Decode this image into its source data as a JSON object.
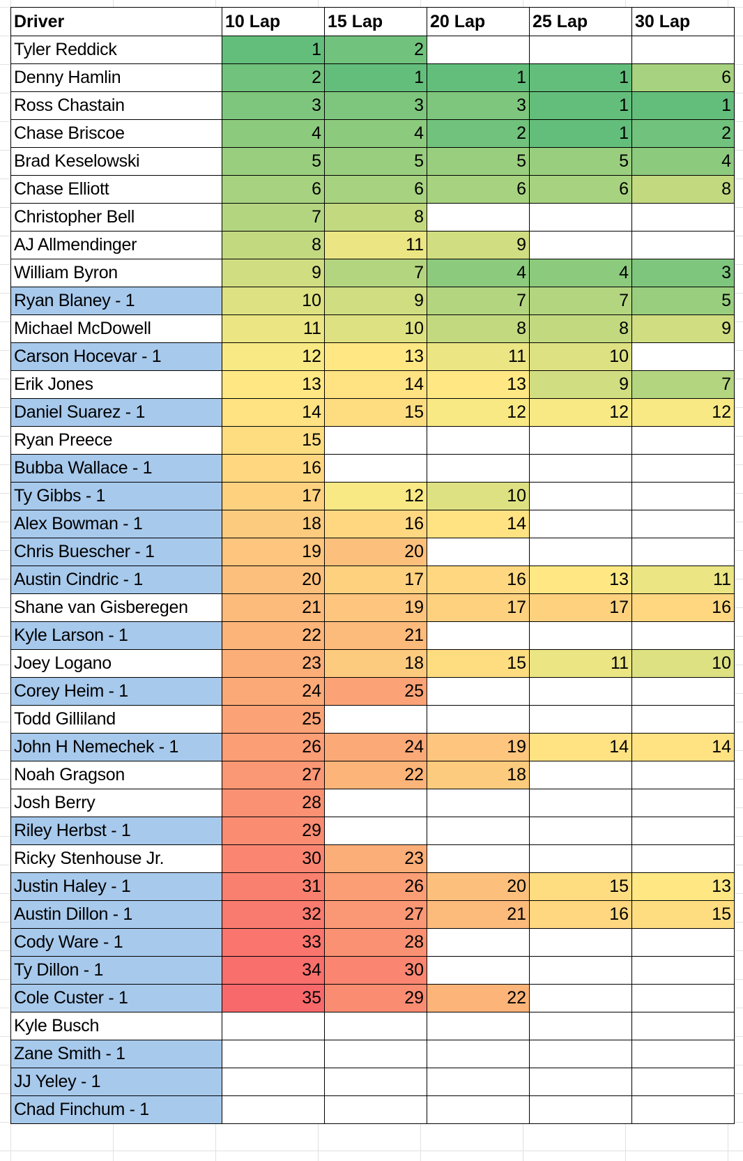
{
  "sheet": {
    "headers": [
      "Driver",
      "10 Lap",
      "15 Lap",
      "20 Lap",
      "25 Lap",
      "30 Lap"
    ],
    "colors": {
      "flagged_driver_fill": "#a7c9ec",
      "scale_min": "#63be7b",
      "scale_mid": "#ffeb84",
      "scale_max": "#f8696b"
    },
    "rows": [
      {
        "driver": "Tyler Reddick",
        "flag": false,
        "laps": [
          1,
          2,
          null,
          null,
          null
        ]
      },
      {
        "driver": "Denny Hamlin",
        "flag": false,
        "laps": [
          2,
          1,
          1,
          1,
          6
        ]
      },
      {
        "driver": "Ross Chastain",
        "flag": false,
        "laps": [
          3,
          3,
          3,
          1,
          1
        ]
      },
      {
        "driver": "Chase Briscoe",
        "flag": false,
        "laps": [
          4,
          4,
          2,
          1,
          2
        ]
      },
      {
        "driver": "Brad Keselowski",
        "flag": false,
        "laps": [
          5,
          5,
          5,
          5,
          4
        ]
      },
      {
        "driver": "Chase Elliott",
        "flag": false,
        "laps": [
          6,
          6,
          6,
          6,
          8
        ]
      },
      {
        "driver": "Christopher Bell",
        "flag": false,
        "laps": [
          7,
          8,
          null,
          null,
          null
        ]
      },
      {
        "driver": "AJ Allmendinger",
        "flag": false,
        "laps": [
          8,
          11,
          9,
          null,
          null
        ]
      },
      {
        "driver": "William Byron",
        "flag": false,
        "laps": [
          9,
          7,
          4,
          4,
          3
        ]
      },
      {
        "driver": "Ryan Blaney - 1",
        "flag": true,
        "laps": [
          10,
          9,
          7,
          7,
          5
        ]
      },
      {
        "driver": "Michael McDowell",
        "flag": false,
        "laps": [
          11,
          10,
          8,
          8,
          9
        ]
      },
      {
        "driver": "Carson Hocevar - 1",
        "flag": true,
        "laps": [
          12,
          13,
          11,
          10,
          null
        ]
      },
      {
        "driver": "Erik Jones",
        "flag": false,
        "laps": [
          13,
          14,
          13,
          9,
          7
        ]
      },
      {
        "driver": "Daniel Suarez - 1",
        "flag": true,
        "laps": [
          14,
          15,
          12,
          12,
          12
        ]
      },
      {
        "driver": "Ryan Preece",
        "flag": false,
        "laps": [
          15,
          null,
          null,
          null,
          null
        ]
      },
      {
        "driver": "Bubba Wallace - 1",
        "flag": true,
        "laps": [
          16,
          null,
          null,
          null,
          null
        ]
      },
      {
        "driver": "Ty Gibbs - 1",
        "flag": true,
        "laps": [
          17,
          12,
          10,
          null,
          null
        ]
      },
      {
        "driver": "Alex Bowman - 1",
        "flag": true,
        "laps": [
          18,
          16,
          14,
          null,
          null
        ]
      },
      {
        "driver": "Chris Buescher - 1",
        "flag": true,
        "laps": [
          19,
          20,
          null,
          null,
          null
        ]
      },
      {
        "driver": "Austin Cindric - 1",
        "flag": true,
        "laps": [
          20,
          17,
          16,
          13,
          11
        ]
      },
      {
        "driver": "Shane van Gisberegen",
        "flag": false,
        "laps": [
          21,
          19,
          17,
          17,
          16
        ]
      },
      {
        "driver": "Kyle Larson - 1",
        "flag": true,
        "laps": [
          22,
          21,
          null,
          null,
          null
        ]
      },
      {
        "driver": "Joey Logano",
        "flag": false,
        "laps": [
          23,
          18,
          15,
          11,
          10
        ]
      },
      {
        "driver": "Corey Heim - 1",
        "flag": true,
        "laps": [
          24,
          25,
          null,
          null,
          null
        ]
      },
      {
        "driver": "Todd Gilliland",
        "flag": false,
        "laps": [
          25,
          null,
          null,
          null,
          null
        ]
      },
      {
        "driver": "John H Nemechek - 1",
        "flag": true,
        "laps": [
          26,
          24,
          19,
          14,
          14
        ]
      },
      {
        "driver": "Noah Gragson",
        "flag": false,
        "laps": [
          27,
          22,
          18,
          null,
          null
        ]
      },
      {
        "driver": "Josh Berry",
        "flag": false,
        "laps": [
          28,
          null,
          null,
          null,
          null
        ]
      },
      {
        "driver": "Riley Herbst - 1",
        "flag": true,
        "laps": [
          29,
          null,
          null,
          null,
          null
        ]
      },
      {
        "driver": "Ricky Stenhouse Jr.",
        "flag": false,
        "laps": [
          30,
          23,
          null,
          null,
          null
        ]
      },
      {
        "driver": "Justin Haley - 1",
        "flag": true,
        "laps": [
          31,
          26,
          20,
          15,
          13
        ]
      },
      {
        "driver": "Austin Dillon - 1",
        "flag": true,
        "laps": [
          32,
          27,
          21,
          16,
          15
        ]
      },
      {
        "driver": "Cody Ware - 1",
        "flag": true,
        "laps": [
          33,
          28,
          null,
          null,
          null
        ]
      },
      {
        "driver": "Ty Dillon - 1",
        "flag": true,
        "laps": [
          34,
          30,
          null,
          null,
          null
        ]
      },
      {
        "driver": "Cole Custer - 1",
        "flag": true,
        "laps": [
          35,
          29,
          22,
          null,
          null
        ]
      },
      {
        "driver": "Kyle Busch",
        "flag": false,
        "laps": [
          null,
          null,
          null,
          null,
          null
        ]
      },
      {
        "driver": "Zane Smith - 1",
        "flag": true,
        "laps": [
          null,
          null,
          null,
          null,
          null
        ]
      },
      {
        "driver": "JJ Yeley - 1",
        "flag": true,
        "laps": [
          null,
          null,
          null,
          null,
          null
        ]
      },
      {
        "driver": "Chad Finchum - 1",
        "flag": true,
        "laps": [
          null,
          null,
          null,
          null,
          null
        ]
      }
    ]
  }
}
